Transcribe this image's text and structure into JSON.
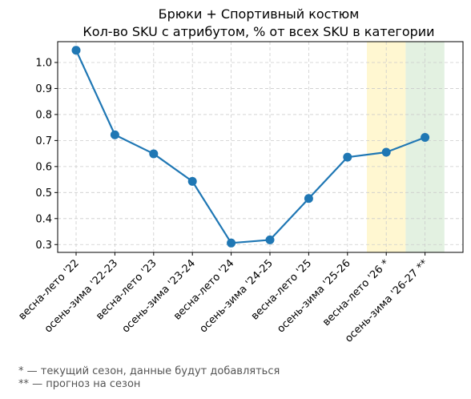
{
  "chart_data": {
    "type": "line",
    "title": [
      "Брюки + Спортивный костюм",
      "Кол-во SKU с атрибутом, % от всех SKU в категории"
    ],
    "xlabel": "",
    "ylabel": "",
    "categories": [
      "весна-лето '22",
      "осень-зима '22-23",
      "весна-лето '23",
      "осень-зима '23-24",
      "весна-лето '24",
      "осень-зима '24-25",
      "весна-лето '25",
      "осень-зима '25-26",
      "весна-лето '26 *",
      "осень-зима '26-27 **"
    ],
    "series": [
      {
        "values": [
          1.047,
          0.722,
          0.649,
          0.543,
          0.306,
          0.318,
          0.477,
          0.636,
          0.655,
          0.712
        ]
      }
    ],
    "ylim": [
      0.27,
      1.08
    ],
    "yticks": [
      0.3,
      0.4,
      0.5,
      0.6,
      0.7,
      0.8,
      0.9,
      1.0
    ],
    "ytick_labels": [
      "0.3",
      "0.4",
      "0.5",
      "0.6",
      "0.7",
      "0.8",
      "0.9",
      "1.0"
    ],
    "grid": true,
    "highlight_regions": [
      {
        "category": "весна-лето '26 *",
        "color": "#fff7d1"
      },
      {
        "category": "осень-зима '26-27 **",
        "color": "#e3f1e1"
      }
    ],
    "line_color": "#1f77b4"
  },
  "footnotes": [
    "* — текущий сезон, данные будут добавляться",
    "** — прогноз на сезон"
  ]
}
